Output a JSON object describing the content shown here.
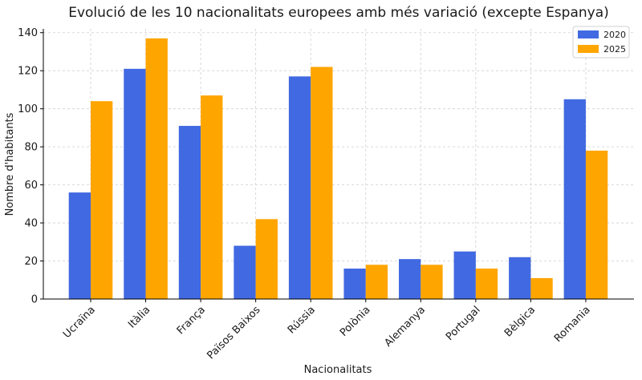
{
  "chart_data": {
    "type": "bar",
    "title": "Evolució de les 10 nacionalitats europees amb més variació (excepte Espanya)",
    "xlabel": "Nacionalitats",
    "ylabel": "Nombre d'habitants",
    "categories": [
      "Ucraïna",
      "Itàlia",
      "França",
      "Països Baixos",
      "Rússia",
      "Polònia",
      "Alemanya",
      "Portugal",
      "Bèlgica",
      "Romania"
    ],
    "series": [
      {
        "name": "2020",
        "color": "#4169e1",
        "values": [
          56,
          121,
          91,
          28,
          117,
          16,
          21,
          25,
          22,
          105
        ]
      },
      {
        "name": "2025",
        "color": "#ffa500",
        "values": [
          104,
          137,
          107,
          42,
          122,
          18,
          18,
          16,
          11,
          78
        ]
      }
    ],
    "ylim": [
      0,
      142
    ],
    "yticks": [
      0,
      20,
      40,
      60,
      80,
      100,
      120,
      140
    ],
    "grid": true,
    "legend": "top-right"
  }
}
